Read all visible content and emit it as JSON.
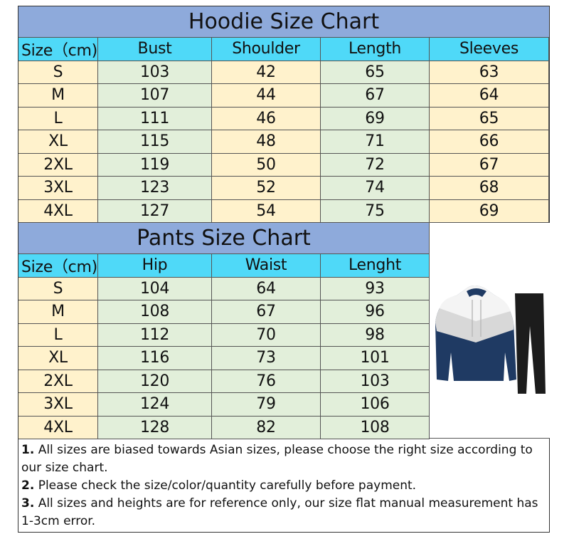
{
  "hoodie": {
    "title": "Hoodie Size Chart",
    "headers": [
      "Size（cm)",
      "Bust",
      "Shoulder",
      "Length",
      "Sleeves"
    ],
    "rows": [
      [
        "S",
        "103",
        "42",
        "65",
        "63"
      ],
      [
        "M",
        "107",
        "44",
        "67",
        "64"
      ],
      [
        "L",
        "111",
        "46",
        "69",
        "65"
      ],
      [
        "XL",
        "115",
        "48",
        "71",
        "66"
      ],
      [
        "2XL",
        "119",
        "50",
        "72",
        "67"
      ],
      [
        "3XL",
        "123",
        "52",
        "74",
        "68"
      ],
      [
        "4XL",
        "127",
        "54",
        "75",
        "69"
      ]
    ]
  },
  "pants": {
    "title": "Pants Size Chart",
    "headers": [
      "Size（cm)",
      "Hip",
      "Waist",
      "Lenght"
    ],
    "rows": [
      [
        "S",
        "104",
        "64",
        "93"
      ],
      [
        "M",
        "108",
        "67",
        "96"
      ],
      [
        "L",
        "112",
        "70",
        "98"
      ],
      [
        "XL",
        "116",
        "73",
        "101"
      ],
      [
        "2XL",
        "120",
        "76",
        "103"
      ],
      [
        "3XL",
        "124",
        "79",
        "106"
      ],
      [
        "4XL",
        "128",
        "82",
        "108"
      ]
    ]
  },
  "product_image": "hoodie-and-pants-tracksuit",
  "colors": {
    "title_bg": "#8eaadb",
    "header_bg": "#4fd9f8",
    "yellow": "#fff2cc",
    "green": "#e2efda",
    "hoodie_navy": "#1f3a63",
    "pants_black": "#1c1c1c"
  },
  "notes": [
    {
      "num": "1.",
      "text": " All sizes are biased towards Asian sizes, please choose the right size according to our size chart."
    },
    {
      "num": "2.",
      "text": " Please check the size/color/quantity carefully before payment."
    },
    {
      "num": "3.",
      "text": " All sizes and heights are for reference only, our size flat manual measurement has 1-3cm error."
    }
  ]
}
